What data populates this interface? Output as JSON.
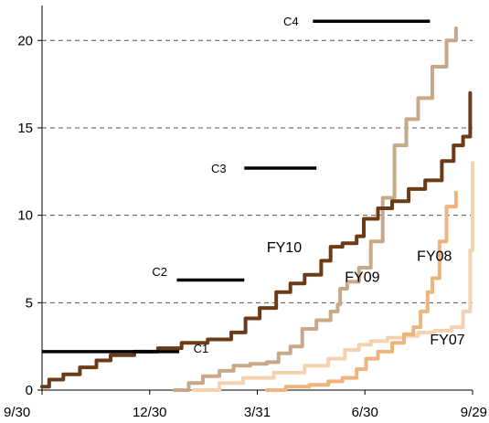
{
  "chart_data": {
    "type": "line",
    "x_unit": "days since 9/30",
    "xlim": [
      0,
      364
    ],
    "ylim": [
      0,
      22
    ],
    "grid": "horizontal dashed at y ticks",
    "legend": "none (series labelled inline)",
    "x_ticks": [
      {
        "x": 0,
        "label": "9/30"
      },
      {
        "x": 91,
        "label": "12/30"
      },
      {
        "x": 182,
        "label": "3/31"
      },
      {
        "x": 273,
        "label": "6/30"
      },
      {
        "x": 364,
        "label": "9/29"
      }
    ],
    "y_ticks": [
      0,
      5,
      10,
      15,
      20
    ],
    "series": [
      {
        "name": "FY10",
        "label": {
          "text": "FY10",
          "x": 190,
          "y": 7.9
        },
        "color": "#6b3a16",
        "width": 4,
        "points": [
          [
            0,
            0.2
          ],
          [
            6,
            0.6
          ],
          [
            18,
            0.9
          ],
          [
            32,
            1.3
          ],
          [
            46,
            1.7
          ],
          [
            58,
            2.0
          ],
          [
            78,
            2.2
          ],
          [
            98,
            2.4
          ],
          [
            118,
            2.7
          ],
          [
            140,
            2.9
          ],
          [
            160,
            3.3
          ],
          [
            172,
            4.1
          ],
          [
            184,
            4.7
          ],
          [
            198,
            5.6
          ],
          [
            210,
            6.1
          ],
          [
            222,
            6.6
          ],
          [
            236,
            7.4
          ],
          [
            244,
            8.2
          ],
          [
            254,
            8.4
          ],
          [
            266,
            8.8
          ],
          [
            272,
            9.8
          ],
          [
            284,
            10.4
          ],
          [
            296,
            10.8
          ],
          [
            310,
            11.5
          ],
          [
            324,
            12.0
          ],
          [
            338,
            13.1
          ],
          [
            348,
            14.0
          ],
          [
            356,
            14.5
          ],
          [
            362,
            17.0
          ]
        ]
      },
      {
        "name": "FY09",
        "label": {
          "text": "FY09",
          "x": 256,
          "y": 6.2
        },
        "color": "#c9a88a",
        "width": 4,
        "points": [
          [
            112,
            0
          ],
          [
            124,
            0.4
          ],
          [
            136,
            0.8
          ],
          [
            150,
            1.1
          ],
          [
            162,
            1.4
          ],
          [
            176,
            1.5
          ],
          [
            190,
            1.6
          ],
          [
            200,
            2.1
          ],
          [
            210,
            2.5
          ],
          [
            220,
            3.5
          ],
          [
            232,
            4.0
          ],
          [
            244,
            4.5
          ],
          [
            250,
            4.9
          ],
          [
            252,
            5.8
          ],
          [
            258,
            6.2
          ],
          [
            268,
            7.0
          ],
          [
            278,
            8.5
          ],
          [
            288,
            11.0
          ],
          [
            298,
            14.0
          ],
          [
            308,
            15.5
          ],
          [
            318,
            16.7
          ],
          [
            330,
            18.5
          ],
          [
            342,
            20.0
          ],
          [
            350,
            20.7
          ]
        ]
      },
      {
        "name": "FY08",
        "label": {
          "text": "FY08",
          "x": 317,
          "y": 7.4
        },
        "color": "#eeb47d",
        "width": 4,
        "points": [
          [
            190,
            0
          ],
          [
            206,
            0.2
          ],
          [
            226,
            0.3
          ],
          [
            242,
            0.5
          ],
          [
            254,
            0.7
          ],
          [
            266,
            1.2
          ],
          [
            274,
            1.8
          ],
          [
            284,
            2.2
          ],
          [
            296,
            2.7
          ],
          [
            306,
            3.2
          ],
          [
            314,
            3.6
          ],
          [
            320,
            4.5
          ],
          [
            326,
            5.6
          ],
          [
            330,
            6.4
          ],
          [
            336,
            8.5
          ],
          [
            342,
            10.5
          ],
          [
            350,
            11.3
          ]
        ]
      },
      {
        "name": "FY07",
        "label": {
          "text": "FY07",
          "x": 328,
          "y": 2.6
        },
        "color": "#f4d2b0",
        "width": 4,
        "points": [
          [
            128,
            0
          ],
          [
            150,
            0.4
          ],
          [
            170,
            0.7
          ],
          [
            196,
            1.0
          ],
          [
            222,
            1.4
          ],
          [
            242,
            1.8
          ],
          [
            256,
            2.3
          ],
          [
            268,
            2.6
          ],
          [
            278,
            2.8
          ],
          [
            292,
            3.0
          ],
          [
            306,
            3.1
          ],
          [
            318,
            3.3
          ],
          [
            332,
            3.4
          ],
          [
            346,
            3.6
          ],
          [
            356,
            4.5
          ],
          [
            362,
            8.0
          ],
          [
            364,
            13.0
          ]
        ]
      }
    ],
    "targets": [
      {
        "label": "C1",
        "x_start": 0,
        "x_end": 116,
        "y": 2.2,
        "label_x": 128,
        "label_y": 2.4
      },
      {
        "label": "C2",
        "x_start": 114,
        "x_end": 171,
        "y": 6.3,
        "label_x": 93,
        "label_y": 6.8
      },
      {
        "label": "C3",
        "x_start": 171,
        "x_end": 232,
        "y": 12.7,
        "label_x": 143,
        "label_y": 12.7
      },
      {
        "label": "C4",
        "x_start": 229,
        "x_end": 328,
        "y": 21.1,
        "label_x": 204,
        "label_y": 21.1
      }
    ],
    "target_color": "#000000"
  }
}
